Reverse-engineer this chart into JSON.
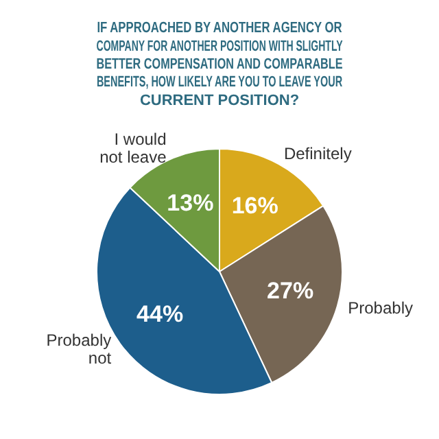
{
  "chart_data": {
    "type": "pie",
    "title": "IF APPROACHED BY ANOTHER AGENCY OR COMPANY FOR ANOTHER POSITION WITH SLIGHTLY BETTER COMPENSATION AND COMPARABLE BENEFITS, HOW LIKELY ARE YOU TO LEAVE YOUR CURRENT POSITION?",
    "categories": [
      "Definitely",
      "Probably",
      "Probably not",
      "I would not leave"
    ],
    "values": [
      16,
      27,
      44,
      13
    ],
    "colors": [
      "#d9a91c",
      "#766654",
      "#1d5e8c",
      "#6e9a3f"
    ],
    "value_labels": [
      "16%",
      "27%",
      "44%",
      "13%"
    ],
    "legend": false
  }
}
